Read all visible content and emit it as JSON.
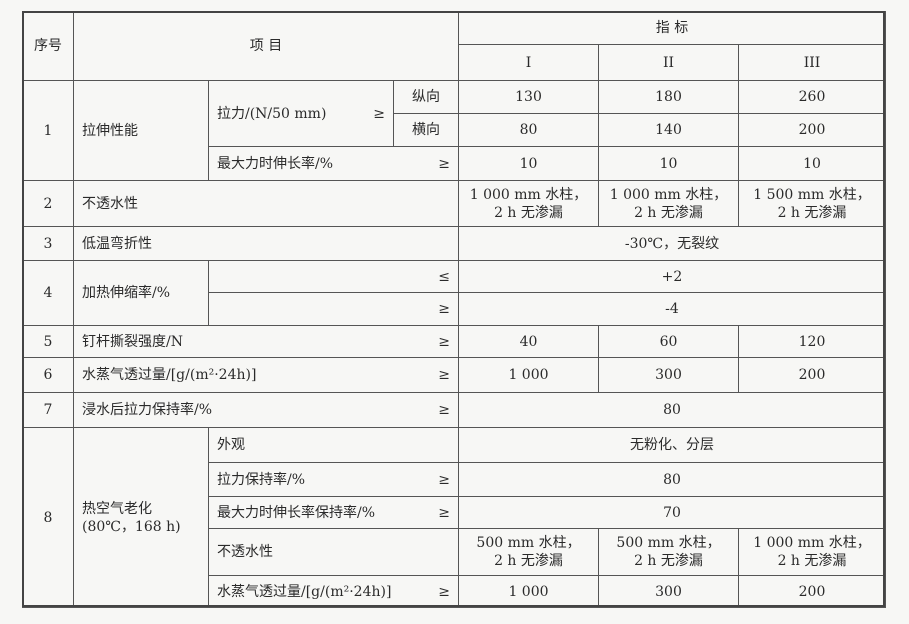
{
  "header": {
    "no": "序号",
    "item": "项 目",
    "indicator": "指 标",
    "grades": [
      "I",
      "II",
      "III"
    ]
  },
  "rows": {
    "r1": {
      "no": "1",
      "name": "拉伸性能",
      "tensile": "拉力/(N/50 mm)",
      "cmp": "≥",
      "dir_long": "纵向",
      "dir_trans": "横向",
      "long": [
        "130",
        "180",
        "260"
      ],
      "trans": [
        "80",
        "140",
        "200"
      ],
      "elong": "最大力时伸长率/%",
      "elong_cmp": "≥",
      "elong_vals": [
        "10",
        "10",
        "10"
      ]
    },
    "r2": {
      "no": "2",
      "name": "不透水性",
      "vals": [
        [
          "1 000 mm 水柱，",
          "2 h 无渗漏"
        ],
        [
          "1 000 mm 水柱，",
          "2 h 无渗漏"
        ],
        [
          "1 500 mm 水柱，",
          "2 h 无渗漏"
        ]
      ]
    },
    "r3": {
      "no": "3",
      "name": "低温弯折性",
      "val": "-30℃，无裂纹"
    },
    "r4": {
      "no": "4",
      "name": "加热伸缩率/%",
      "cmp1": "≤",
      "val1": "+2",
      "cmp2": "≥",
      "val2": "-4"
    },
    "r5": {
      "no": "5",
      "name": "钉杆撕裂强度/N",
      "cmp": "≥",
      "vals": [
        "40",
        "60",
        "120"
      ]
    },
    "r6": {
      "no": "6",
      "name": "水蒸气透过量/[g/(m²·24h)]",
      "cmp": "≥",
      "vals": [
        "1 000",
        "300",
        "200"
      ]
    },
    "r7": {
      "no": "7",
      "name": "浸水后拉力保持率/%",
      "cmp": "≥",
      "val": "80"
    },
    "r8": {
      "no": "8",
      "name": "热空气老化",
      "cond": "(80℃，168 h)",
      "appearance": "外观",
      "appearance_val": "无粉化、分层",
      "tensile_ret": "拉力保持率/%",
      "tensile_ret_cmp": "≥",
      "tensile_ret_val": "80",
      "elong_ret": "最大力时伸长率保持率/%",
      "elong_ret_cmp": "≥",
      "elong_ret_val": "70",
      "water": "不透水性",
      "water_vals": [
        [
          "500 mm 水柱，",
          "2 h 无渗漏"
        ],
        [
          "500 mm 水柱，",
          "2 h 无渗漏"
        ],
        [
          "1 000 mm 水柱，",
          "2 h 无渗漏"
        ]
      ],
      "vapor": "水蒸气透过量/[g/(m²·24h)]",
      "vapor_cmp": "≥",
      "vapor_vals": [
        "1 000",
        "300",
        "200"
      ]
    }
  }
}
